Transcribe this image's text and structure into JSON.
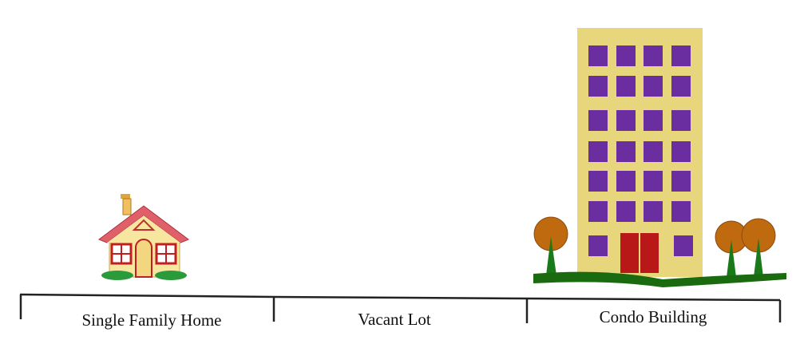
{
  "lots": [
    {
      "label": "Single Family Home"
    },
    {
      "label": "Vacant Lot"
    },
    {
      "label": "Condo Building"
    }
  ]
}
